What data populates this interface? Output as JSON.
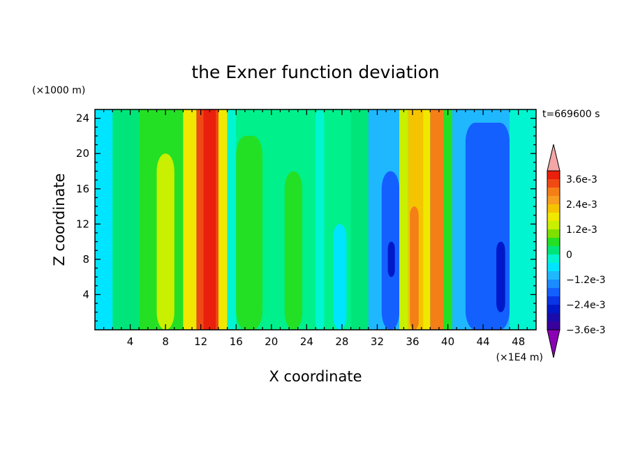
{
  "chart_data": {
    "type": "heatmap",
    "title": "the Exner function deviation",
    "xlabel": "X coordinate",
    "ylabel": "Z coordinate",
    "x_unit": "(×1E4 m)",
    "y_unit": "(×1000 m)",
    "time_label": "t=669600 s",
    "xlim": [
      0,
      50
    ],
    "ylim": [
      0,
      25
    ],
    "x_ticks": [
      4,
      8,
      12,
      16,
      20,
      24,
      28,
      32,
      36,
      40,
      44,
      48
    ],
    "y_ticks": [
      4,
      8,
      12,
      16,
      20,
      24
    ],
    "colorbar": {
      "labels": [
        {
          "level": 0.0036,
          "text": "3.6e-3"
        },
        {
          "level": 0.0024,
          "text": "2.4e-3"
        },
        {
          "level": 0.0012,
          "text": "1.2e-3"
        },
        {
          "level": 0,
          "text": "0"
        },
        {
          "level": -0.0012,
          "text": "−1.2e-3"
        },
        {
          "level": -0.0024,
          "text": "−2.4e-3"
        },
        {
          "level": -0.0036,
          "text": "−3.6e-3"
        }
      ],
      "colors_high_to_low": [
        "#f4a6a6",
        "#e8200c",
        "#f04a14",
        "#f57f17",
        "#f79d1f",
        "#f5c400",
        "#f0e800",
        "#c8f000",
        "#7fe000",
        "#24e024",
        "#00e57a",
        "#00f5d0",
        "#00e5ff",
        "#1fb8ff",
        "#1a8cff",
        "#1460ff",
        "#0a35e6",
        "#0019c8",
        "#1a0cab",
        "#3a009e",
        "#8a00b5"
      ],
      "min_color": "#8a00b5",
      "max_color": "#f4a6a6"
    },
    "background_color": "#00f08c",
    "columns": [
      {
        "x": [
          0,
          2
        ],
        "v": -0.0006
      },
      {
        "x": [
          2,
          5
        ],
        "v": 0.0002
      },
      {
        "x": [
          5,
          10
        ],
        "v": 0.0006
      },
      {
        "x": [
          7,
          9
        ],
        "v": 0.0011,
        "z": [
          0,
          20
        ]
      },
      {
        "x": [
          10,
          11.5
        ],
        "v": 0.0016
      },
      {
        "x": [
          11.5,
          14
        ],
        "v": 0.0032
      },
      {
        "x": [
          12.3,
          13.7
        ],
        "v": 0.0036
      },
      {
        "x": [
          14,
          15
        ],
        "v": 0.0015
      },
      {
        "x": [
          15,
          16
        ],
        "v": -0.0003
      },
      {
        "x": [
          16,
          19
        ],
        "v": 0.0006,
        "z": [
          0,
          22
        ]
      },
      {
        "x": [
          21.5,
          23.5
        ],
        "v": 0.0005,
        "z": [
          0,
          18
        ]
      },
      {
        "x": [
          25,
          26
        ],
        "v": -0.0005,
        "z": [
          0,
          25
        ]
      },
      {
        "x": [
          27,
          28.5
        ],
        "v": -0.0008,
        "z": [
          0,
          12
        ]
      },
      {
        "x": [
          29,
          31
        ],
        "v": -0.0002
      },
      {
        "x": [
          31,
          34.5
        ],
        "v": -0.0013
      },
      {
        "x": [
          32.5,
          34.5
        ],
        "v": -0.002,
        "z": [
          0,
          18
        ]
      },
      {
        "x": [
          33.2,
          34
        ],
        "v": -0.0027,
        "z": [
          6,
          10
        ]
      },
      {
        "x": [
          34.5,
          35.5
        ],
        "v": 0.0012
      },
      {
        "x": [
          35.5,
          37.2
        ],
        "v": 0.0022
      },
      {
        "x": [
          35.7,
          36.7
        ],
        "v": 0.003,
        "z": [
          0,
          14
        ]
      },
      {
        "x": [
          37.2,
          38
        ],
        "v": 0.0014
      },
      {
        "x": [
          38,
          39.5
        ],
        "v": 0.0028
      },
      {
        "x": [
          39.5,
          40.5
        ],
        "v": 0.0006
      },
      {
        "x": [
          40.5,
          47
        ],
        "v": -0.0013
      },
      {
        "x": [
          42,
          47
        ],
        "v": -0.002,
        "z": [
          0,
          23.5
        ]
      },
      {
        "x": [
          45.5,
          46.5
        ],
        "v": -0.0027,
        "z": [
          2,
          10
        ]
      },
      {
        "x": [
          47,
          50
        ],
        "v": -0.0004
      }
    ]
  }
}
